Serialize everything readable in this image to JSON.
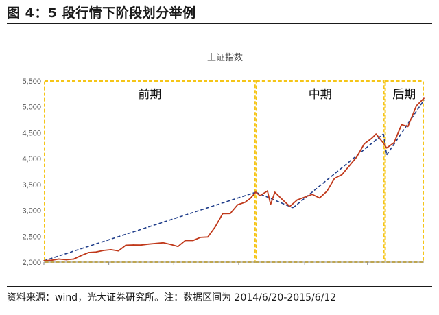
{
  "figure": {
    "title": "图 4：5 段行情下阶段划分举例",
    "source": "资料来源：wind，光大证券研究所。注：数据区间为 2014/6/20-2015/6/12"
  },
  "chart_data": {
    "type": "line",
    "title": "上证指数",
    "xlabel": "",
    "ylabel": "",
    "ylim": [
      2000,
      5500
    ],
    "xlim": [
      "2014-06-20",
      "2015-06-12"
    ],
    "y_ticks": [
      2000,
      2500,
      3000,
      3500,
      4000,
      4500,
      5000,
      5500
    ],
    "y_tick_labels": [
      "2,000",
      "2,500",
      "3,000",
      "3,500",
      "4,000",
      "4,500",
      "5,000",
      "5,500"
    ],
    "x_ticks": [
      "2014-06-20",
      "2014-08-20",
      "2014-10-20",
      "2014-12-20",
      "2015-02-20",
      "2015-04-20"
    ],
    "grid": false,
    "legend": "none",
    "colors": {
      "series": "#c0391b",
      "trend": "#1f3d8a",
      "phase_box": "#f5c518",
      "axis": "#888888"
    },
    "series": [
      {
        "values": [
          [
            "2014-06-20",
            2026
          ],
          [
            "2014-06-27",
            2036
          ],
          [
            "2014-07-04",
            2059
          ],
          [
            "2014-07-11",
            2046
          ],
          [
            "2014-07-18",
            2060
          ],
          [
            "2014-07-25",
            2127
          ],
          [
            "2014-08-01",
            2185
          ],
          [
            "2014-08-08",
            2195
          ],
          [
            "2014-08-15",
            2226
          ],
          [
            "2014-08-22",
            2240
          ],
          [
            "2014-08-29",
            2217
          ],
          [
            "2014-09-05",
            2326
          ],
          [
            "2014-09-12",
            2331
          ],
          [
            "2014-09-19",
            2329
          ],
          [
            "2014-09-26",
            2347
          ],
          [
            "2014-10-10",
            2374
          ],
          [
            "2014-10-17",
            2341
          ],
          [
            "2014-10-24",
            2302
          ],
          [
            "2014-10-31",
            2420
          ],
          [
            "2014-11-07",
            2418
          ],
          [
            "2014-11-14",
            2478
          ],
          [
            "2014-11-21",
            2487
          ],
          [
            "2014-11-28",
            2683
          ],
          [
            "2014-12-05",
            2937
          ],
          [
            "2014-12-12",
            2938
          ],
          [
            "2014-12-19",
            3108
          ],
          [
            "2014-12-26",
            3157
          ],
          [
            "2014-12-31",
            3235
          ],
          [
            "2015-01-05",
            3351
          ],
          [
            "2015-01-09",
            3285
          ],
          [
            "2015-01-16",
            3376
          ],
          [
            "2015-01-19",
            3116
          ],
          [
            "2015-01-23",
            3351
          ],
          [
            "2015-01-30",
            3211
          ],
          [
            "2015-02-06",
            3076
          ],
          [
            "2015-02-13",
            3203
          ],
          [
            "2015-02-27",
            3310
          ],
          [
            "2015-03-06",
            3241
          ],
          [
            "2015-03-13",
            3373
          ],
          [
            "2015-03-20",
            3617
          ],
          [
            "2015-03-27",
            3691
          ],
          [
            "2015-04-03",
            3864
          ],
          [
            "2015-04-10",
            4035
          ],
          [
            "2015-04-17",
            4287
          ],
          [
            "2015-04-24",
            4394
          ],
          [
            "2015-04-28",
            4476
          ],
          [
            "2015-05-05",
            4299
          ],
          [
            "2015-05-08",
            4206
          ],
          [
            "2015-05-15",
            4308
          ],
          [
            "2015-05-22",
            4658
          ],
          [
            "2015-05-28",
            4621
          ],
          [
            "2015-06-05",
            5023
          ],
          [
            "2015-06-12",
            5166
          ]
        ]
      }
    ],
    "trendlines": [
      {
        "from": [
          "2014-06-20",
          2026
        ],
        "to": [
          "2015-01-05",
          3351
        ]
      },
      {
        "from": [
          "2015-01-05",
          3351
        ],
        "to": [
          "2015-02-09",
          3050
        ]
      },
      {
        "from": [
          "2015-02-09",
          3050
        ],
        "to": [
          "2015-05-05",
          4480
        ]
      },
      {
        "from": [
          "2015-05-05",
          4480
        ],
        "to": [
          "2015-05-08",
          4070
        ]
      },
      {
        "from": [
          "2015-05-08",
          4070
        ],
        "to": [
          "2015-06-12",
          5130
        ]
      }
    ],
    "phases": [
      {
        "label": "前期",
        "start": "2014-06-20",
        "end": "2015-01-05"
      },
      {
        "label": "中期",
        "start": "2015-01-05",
        "end": "2015-05-06"
      },
      {
        "label": "后期",
        "start": "2015-05-06",
        "end": "2015-06-12"
      }
    ]
  }
}
